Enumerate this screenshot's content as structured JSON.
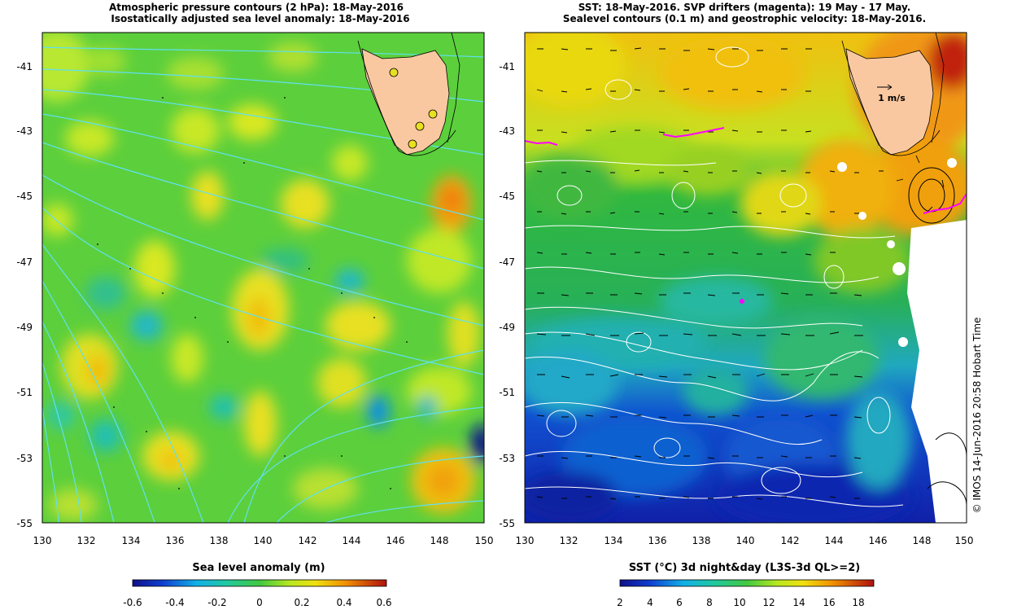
{
  "left_panel": {
    "title_line1": "Atmospheric pressure contours (2 hPa): 18-May-2016",
    "title_line2": "Isostatically adjusted sea level anomaly: 18-May-2016",
    "x_ticks": [
      "130",
      "132",
      "134",
      "136",
      "138",
      "140",
      "142",
      "144",
      "146",
      "148",
      "150"
    ],
    "y_ticks": [
      "-41",
      "-43",
      "-45",
      "-47",
      "-49",
      "-51",
      "-53",
      "-55"
    ],
    "colorbar": {
      "title": "Sea level anomaly (m)",
      "ticks": [
        "-0.6",
        "-0.4",
        "-0.2",
        "0",
        "0.2",
        "0.4",
        "0.6"
      ],
      "range": [
        -0.6,
        0.6
      ]
    }
  },
  "right_panel": {
    "title_line1": "SST: 18-May-2016. SVP drifters (magenta): 19 May - 17 May.",
    "title_line2": "Sealevel contours (0.1 m) and geostrophic velocity: 18-May-2016.",
    "x_ticks": [
      "130",
      "132",
      "134",
      "136",
      "138",
      "140",
      "142",
      "144",
      "146",
      "148",
      "150"
    ],
    "y_ticks": [
      "-41",
      "-43",
      "-45",
      "-47",
      "-49",
      "-51",
      "-53",
      "-55"
    ],
    "velocity_scale_label": "1 m/s",
    "colorbar": {
      "title": "SST (°C) 3d night&day (L3S-3d QL>=2)",
      "ticks": [
        "2",
        "4",
        "6",
        "8",
        "10",
        "12",
        "14",
        "16",
        "18"
      ],
      "range": [
        2,
        19
      ]
    }
  },
  "credit": "© IMOS 14-Jun-2016 20:58 Hobart Time",
  "colors": {
    "land": "#fac8a0",
    "sla_contours": "#60e0f0",
    "sst_contours": "#ffffff",
    "drifters": "#ff00ff"
  }
}
